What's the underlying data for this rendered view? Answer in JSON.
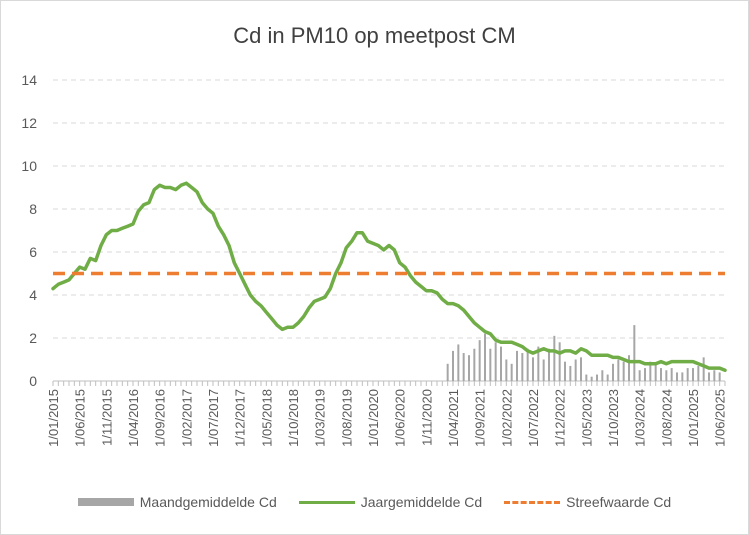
{
  "chart_data": {
    "type": "bar+line",
    "title": "Cd in PM10 op meetpost CM",
    "ylim": [
      0,
      14
    ],
    "yticks": [
      0,
      2,
      4,
      6,
      8,
      10,
      12,
      14
    ],
    "xlim": [
      "2015-01",
      "2025-07"
    ],
    "xtick_labels": [
      "1/01/2015",
      "1/06/2015",
      "1/11/2015",
      "1/04/2016",
      "1/09/2016",
      "1/02/2017",
      "1/07/2017",
      "1/12/2017",
      "1/05/2018",
      "1/10/2018",
      "1/03/2019",
      "1/08/2019",
      "1/01/2020",
      "1/06/2020",
      "1/11/2020",
      "1/04/2021",
      "1/09/2021",
      "1/02/2022",
      "1/07/2022",
      "1/12/2022",
      "1/05/2023",
      "1/10/2023",
      "1/03/2024",
      "1/08/2024",
      "1/01/2025",
      "1/06/2025"
    ],
    "grid": true,
    "legend_position": "bottom",
    "series": [
      {
        "name": "Maandgemiddelde Cd",
        "kind": "bar",
        "color": "#a6a6a6",
        "points": [
          [
            "2021-03",
            0.8
          ],
          [
            "2021-04",
            1.4
          ],
          [
            "2021-05",
            1.7
          ],
          [
            "2021-06",
            1.3
          ],
          [
            "2021-07",
            1.2
          ],
          [
            "2021-08",
            1.5
          ],
          [
            "2021-09",
            1.9
          ],
          [
            "2021-10",
            2.2
          ],
          [
            "2021-11",
            1.5
          ],
          [
            "2021-12",
            1.8
          ],
          [
            "2022-01",
            1.6
          ],
          [
            "2022-02",
            1.0
          ],
          [
            "2022-03",
            0.8
          ],
          [
            "2022-04",
            1.4
          ],
          [
            "2022-05",
            1.3
          ],
          [
            "2022-06",
            1.5
          ],
          [
            "2022-07",
            1.1
          ],
          [
            "2022-08",
            1.6
          ],
          [
            "2022-09",
            1.0
          ],
          [
            "2022-10",
            1.5
          ],
          [
            "2022-11",
            2.1
          ],
          [
            "2022-12",
            1.8
          ],
          [
            "2023-01",
            0.9
          ],
          [
            "2023-02",
            0.7
          ],
          [
            "2023-03",
            1.0
          ],
          [
            "2023-04",
            1.1
          ],
          [
            "2023-05",
            0.3
          ],
          [
            "2023-06",
            0.2
          ],
          [
            "2023-07",
            0.3
          ],
          [
            "2023-08",
            0.5
          ],
          [
            "2023-09",
            0.3
          ],
          [
            "2023-10",
            0.8
          ],
          [
            "2023-11",
            1.0
          ],
          [
            "2023-12",
            0.9
          ],
          [
            "2024-01",
            1.2
          ],
          [
            "2024-02",
            2.6
          ],
          [
            "2024-03",
            0.5
          ],
          [
            "2024-04",
            0.6
          ],
          [
            "2024-05",
            0.9
          ],
          [
            "2024-06",
            0.8
          ],
          [
            "2024-07",
            0.6
          ],
          [
            "2024-08",
            0.5
          ],
          [
            "2024-09",
            0.6
          ],
          [
            "2024-10",
            0.4
          ],
          [
            "2024-11",
            0.4
          ],
          [
            "2024-12",
            0.6
          ],
          [
            "2025-01",
            0.6
          ],
          [
            "2025-02",
            0.7
          ],
          [
            "2025-03",
            1.1
          ],
          [
            "2025-04",
            0.4
          ],
          [
            "2025-05",
            0.5
          ],
          [
            "2025-06",
            0.4
          ]
        ]
      },
      {
        "name": "Jaargemiddelde Cd",
        "kind": "line",
        "color": "#70ad47",
        "points": [
          [
            "2015-01",
            4.3
          ],
          [
            "2015-02",
            4.5
          ],
          [
            "2015-03",
            4.6
          ],
          [
            "2015-04",
            4.7
          ],
          [
            "2015-05",
            5.0
          ],
          [
            "2015-06",
            5.3
          ],
          [
            "2015-07",
            5.2
          ],
          [
            "2015-08",
            5.7
          ],
          [
            "2015-09",
            5.6
          ],
          [
            "2015-10",
            6.3
          ],
          [
            "2015-11",
            6.8
          ],
          [
            "2015-12",
            7.0
          ],
          [
            "2016-01",
            7.0
          ],
          [
            "2016-02",
            7.1
          ],
          [
            "2016-03",
            7.2
          ],
          [
            "2016-04",
            7.3
          ],
          [
            "2016-05",
            7.9
          ],
          [
            "2016-06",
            8.2
          ],
          [
            "2016-07",
            8.3
          ],
          [
            "2016-08",
            8.9
          ],
          [
            "2016-09",
            9.1
          ],
          [
            "2016-10",
            9.0
          ],
          [
            "2016-11",
            9.0
          ],
          [
            "2016-12",
            8.9
          ],
          [
            "2017-01",
            9.1
          ],
          [
            "2017-02",
            9.2
          ],
          [
            "2017-03",
            9.0
          ],
          [
            "2017-04",
            8.8
          ],
          [
            "2017-05",
            8.3
          ],
          [
            "2017-06",
            8.0
          ],
          [
            "2017-07",
            7.8
          ],
          [
            "2017-08",
            7.2
          ],
          [
            "2017-09",
            6.8
          ],
          [
            "2017-10",
            6.3
          ],
          [
            "2017-11",
            5.5
          ],
          [
            "2017-12",
            5.0
          ],
          [
            "2018-01",
            4.5
          ],
          [
            "2018-02",
            4.0
          ],
          [
            "2018-03",
            3.7
          ],
          [
            "2018-04",
            3.5
          ],
          [
            "2018-05",
            3.2
          ],
          [
            "2018-06",
            2.9
          ],
          [
            "2018-07",
            2.6
          ],
          [
            "2018-08",
            2.4
          ],
          [
            "2018-09",
            2.5
          ],
          [
            "2018-10",
            2.5
          ],
          [
            "2018-11",
            2.7
          ],
          [
            "2018-12",
            3.0
          ],
          [
            "2019-01",
            3.4
          ],
          [
            "2019-02",
            3.7
          ],
          [
            "2019-03",
            3.8
          ],
          [
            "2019-04",
            3.9
          ],
          [
            "2019-05",
            4.3
          ],
          [
            "2019-06",
            5.0
          ],
          [
            "2019-07",
            5.5
          ],
          [
            "2019-08",
            6.2
          ],
          [
            "2019-09",
            6.5
          ],
          [
            "2019-10",
            6.9
          ],
          [
            "2019-11",
            6.9
          ],
          [
            "2019-12",
            6.5
          ],
          [
            "2020-01",
            6.4
          ],
          [
            "2020-02",
            6.3
          ],
          [
            "2020-03",
            6.1
          ],
          [
            "2020-04",
            6.3
          ],
          [
            "2020-05",
            6.1
          ],
          [
            "2020-06",
            5.5
          ],
          [
            "2020-07",
            5.3
          ],
          [
            "2020-08",
            4.9
          ],
          [
            "2020-09",
            4.6
          ],
          [
            "2020-10",
            4.4
          ],
          [
            "2020-11",
            4.2
          ],
          [
            "2020-12",
            4.2
          ],
          [
            "2021-01",
            4.1
          ],
          [
            "2021-02",
            3.8
          ],
          [
            "2021-03",
            3.6
          ],
          [
            "2021-04",
            3.6
          ],
          [
            "2021-05",
            3.5
          ],
          [
            "2021-06",
            3.3
          ],
          [
            "2021-07",
            3.0
          ],
          [
            "2021-08",
            2.7
          ],
          [
            "2021-09",
            2.5
          ],
          [
            "2021-10",
            2.3
          ],
          [
            "2021-11",
            2.2
          ],
          [
            "2021-12",
            1.9
          ],
          [
            "2022-01",
            1.8
          ],
          [
            "2022-02",
            1.8
          ],
          [
            "2022-03",
            1.8
          ],
          [
            "2022-04",
            1.7
          ],
          [
            "2022-05",
            1.6
          ],
          [
            "2022-06",
            1.4
          ],
          [
            "2022-07",
            1.3
          ],
          [
            "2022-08",
            1.4
          ],
          [
            "2022-09",
            1.5
          ],
          [
            "2022-10",
            1.4
          ],
          [
            "2022-11",
            1.4
          ],
          [
            "2022-12",
            1.3
          ],
          [
            "2023-01",
            1.4
          ],
          [
            "2023-02",
            1.4
          ],
          [
            "2023-03",
            1.3
          ],
          [
            "2023-04",
            1.5
          ],
          [
            "2023-05",
            1.4
          ],
          [
            "2023-06",
            1.2
          ],
          [
            "2023-07",
            1.2
          ],
          [
            "2023-08",
            1.2
          ],
          [
            "2023-09",
            1.2
          ],
          [
            "2023-10",
            1.1
          ],
          [
            "2023-11",
            1.1
          ],
          [
            "2023-12",
            1.0
          ],
          [
            "2024-01",
            0.9
          ],
          [
            "2024-02",
            0.9
          ],
          [
            "2024-03",
            0.9
          ],
          [
            "2024-04",
            0.8
          ],
          [
            "2024-05",
            0.8
          ],
          [
            "2024-06",
            0.8
          ],
          [
            "2024-07",
            0.9
          ],
          [
            "2024-08",
            0.8
          ],
          [
            "2024-09",
            0.9
          ],
          [
            "2024-10",
            0.9
          ],
          [
            "2024-11",
            0.9
          ],
          [
            "2024-12",
            0.9
          ],
          [
            "2025-01",
            0.9
          ],
          [
            "2025-02",
            0.8
          ],
          [
            "2025-03",
            0.7
          ],
          [
            "2025-04",
            0.6
          ],
          [
            "2025-05",
            0.6
          ],
          [
            "2025-06",
            0.6
          ],
          [
            "2025-07",
            0.5
          ]
        ]
      },
      {
        "name": "Streefwaarde Cd",
        "kind": "dashed-line",
        "color": "#ed7d31",
        "value": 5
      }
    ]
  }
}
